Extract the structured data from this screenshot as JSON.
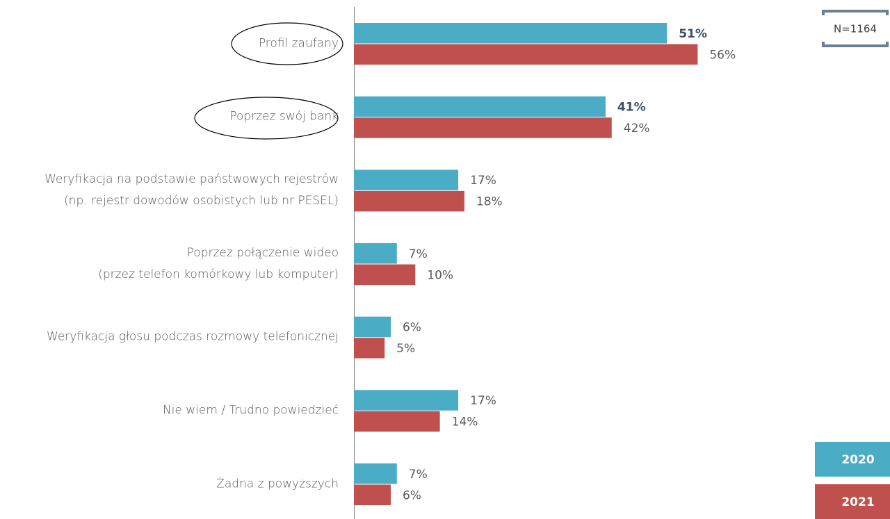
{
  "chart_data": {
    "type": "bar",
    "orientation": "horizontal",
    "note": "N=1164",
    "categories": [
      "Profil zaufany",
      "Poprzez swój bank",
      "Weryfikacja na podstawie państwowych rejestrów\n(np. rejestr dowodów osobistych lub nr PESEL)",
      "Poprzez połączenie wideo\n(przez telefon komórkowy lub komputer)",
      "Weryfikacja głosu podczas rozmowy telefonicznej",
      "Nie wiem / Trudno powiedzieć",
      "Żadna z powyższych"
    ],
    "series": [
      {
        "name": "2020",
        "color": "#4bacc6",
        "values": [
          51,
          41,
          17,
          7,
          6,
          17,
          7
        ],
        "value_labels": [
          "51%",
          "41%",
          "17%",
          "7%",
          "6%",
          "17%",
          "7%"
        ]
      },
      {
        "name": "2021",
        "color": "#c0504d",
        "values": [
          56,
          42,
          18,
          10,
          5,
          14,
          6
        ],
        "value_labels": [
          "56%",
          "42%",
          "18%",
          "10%",
          "5%",
          "14%",
          "6%"
        ]
      }
    ],
    "xlim": [
      0,
      87
    ]
  }
}
